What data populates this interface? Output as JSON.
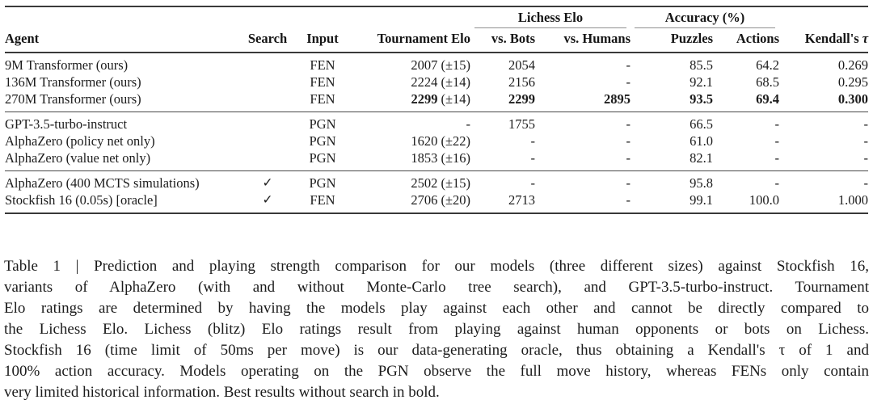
{
  "table": {
    "spanners": {
      "lichess": "Lichess Elo",
      "accuracy": "Accuracy (%)"
    },
    "headers": {
      "agent": "Agent",
      "search": "Search",
      "input": "Input",
      "tournament": "Tournament Elo",
      "vs_bots": "vs. Bots",
      "vs_humans": "vs. Humans",
      "puzzles": "Puzzles",
      "actions": "Actions",
      "kendall_prefix": "Kendall's",
      "kendall_tau": "τ"
    },
    "groups": [
      {
        "rows": [
          {
            "agent": "9M Transformer (ours)",
            "search": "",
            "input": "FEN",
            "tournament": "2007 (±15)",
            "vs_bots": "2054",
            "vs_humans": "-",
            "puzzles": "85.5",
            "actions": "64.2",
            "kendall": "0.269"
          },
          {
            "agent": "136M Transformer (ours)",
            "search": "",
            "input": "FEN",
            "tournament": "2224 (±14)",
            "vs_bots": "2156",
            "vs_humans": "-",
            "puzzles": "92.1",
            "actions": "68.5",
            "kendall": "0.295"
          },
          {
            "agent": "270M Transformer (ours)",
            "search": "",
            "input": "FEN",
            "tournament_bold": "2299",
            "tournament_rest": "(±14)",
            "vs_bots": "2299",
            "vs_humans": "2895",
            "puzzles": "93.5",
            "actions": "69.4",
            "kendall": "0.300"
          }
        ]
      },
      {
        "rows": [
          {
            "agent": "GPT-3.5-turbo-instruct",
            "search": "",
            "input": "PGN",
            "tournament": "-",
            "vs_bots": "1755",
            "vs_humans": "-",
            "puzzles": "66.5",
            "actions": "-",
            "kendall": "-"
          },
          {
            "agent": "AlphaZero (policy net only)",
            "search": "",
            "input": "PGN",
            "tournament": "1620 (±22)",
            "vs_bots": "-",
            "vs_humans": "-",
            "puzzles": "61.0",
            "actions": "-",
            "kendall": "-"
          },
          {
            "agent": "AlphaZero (value net only)",
            "search": "",
            "input": "PGN",
            "tournament": "1853 (±16)",
            "vs_bots": "-",
            "vs_humans": "-",
            "puzzles": "82.1",
            "actions": "-",
            "kendall": "-"
          }
        ]
      },
      {
        "rows": [
          {
            "agent": "AlphaZero (400 MCTS simulations)",
            "search": "✓",
            "input": "PGN",
            "tournament": "2502 (±15)",
            "vs_bots": "-",
            "vs_humans": "-",
            "puzzles": "95.8",
            "actions": "-",
            "kendall": "-"
          },
          {
            "agent": "Stockfish 16 (0.05s) [oracle]",
            "search": "✓",
            "input": "FEN",
            "tournament": "2706 (±20)",
            "vs_bots": "2713",
            "vs_humans": "-",
            "puzzles": "99.1",
            "actions": "100.0",
            "kendall": "1.000"
          }
        ]
      }
    ]
  },
  "caption": {
    "lines": [
      "Table 1 | Prediction and playing strength comparison for our models (three different sizes) against Stockfish 16,",
      "variants of AlphaZero (with and without Monte-Carlo tree search), and GPT-3.5-turbo-instruct. Tournament",
      "Elo ratings are determined by having the models play against each other and cannot be directly compared to",
      "the Lichess Elo. Lichess (blitz) Elo ratings result from playing against human opponents or bots on Lichess.",
      "Stockfish 16 (time limit of 50ms per move) is our data-generating oracle, thus obtaining a Kendall's τ of 1 and",
      "100% action accuracy. Models operating on the PGN observe the full move history, whereas FENs only contain",
      "very limited historical information. Best results without search in bold."
    ]
  },
  "colors": {
    "text": "#1b1b1b",
    "rule_dark": "#3a3a3a",
    "rule_light": "#8f8f8f"
  }
}
